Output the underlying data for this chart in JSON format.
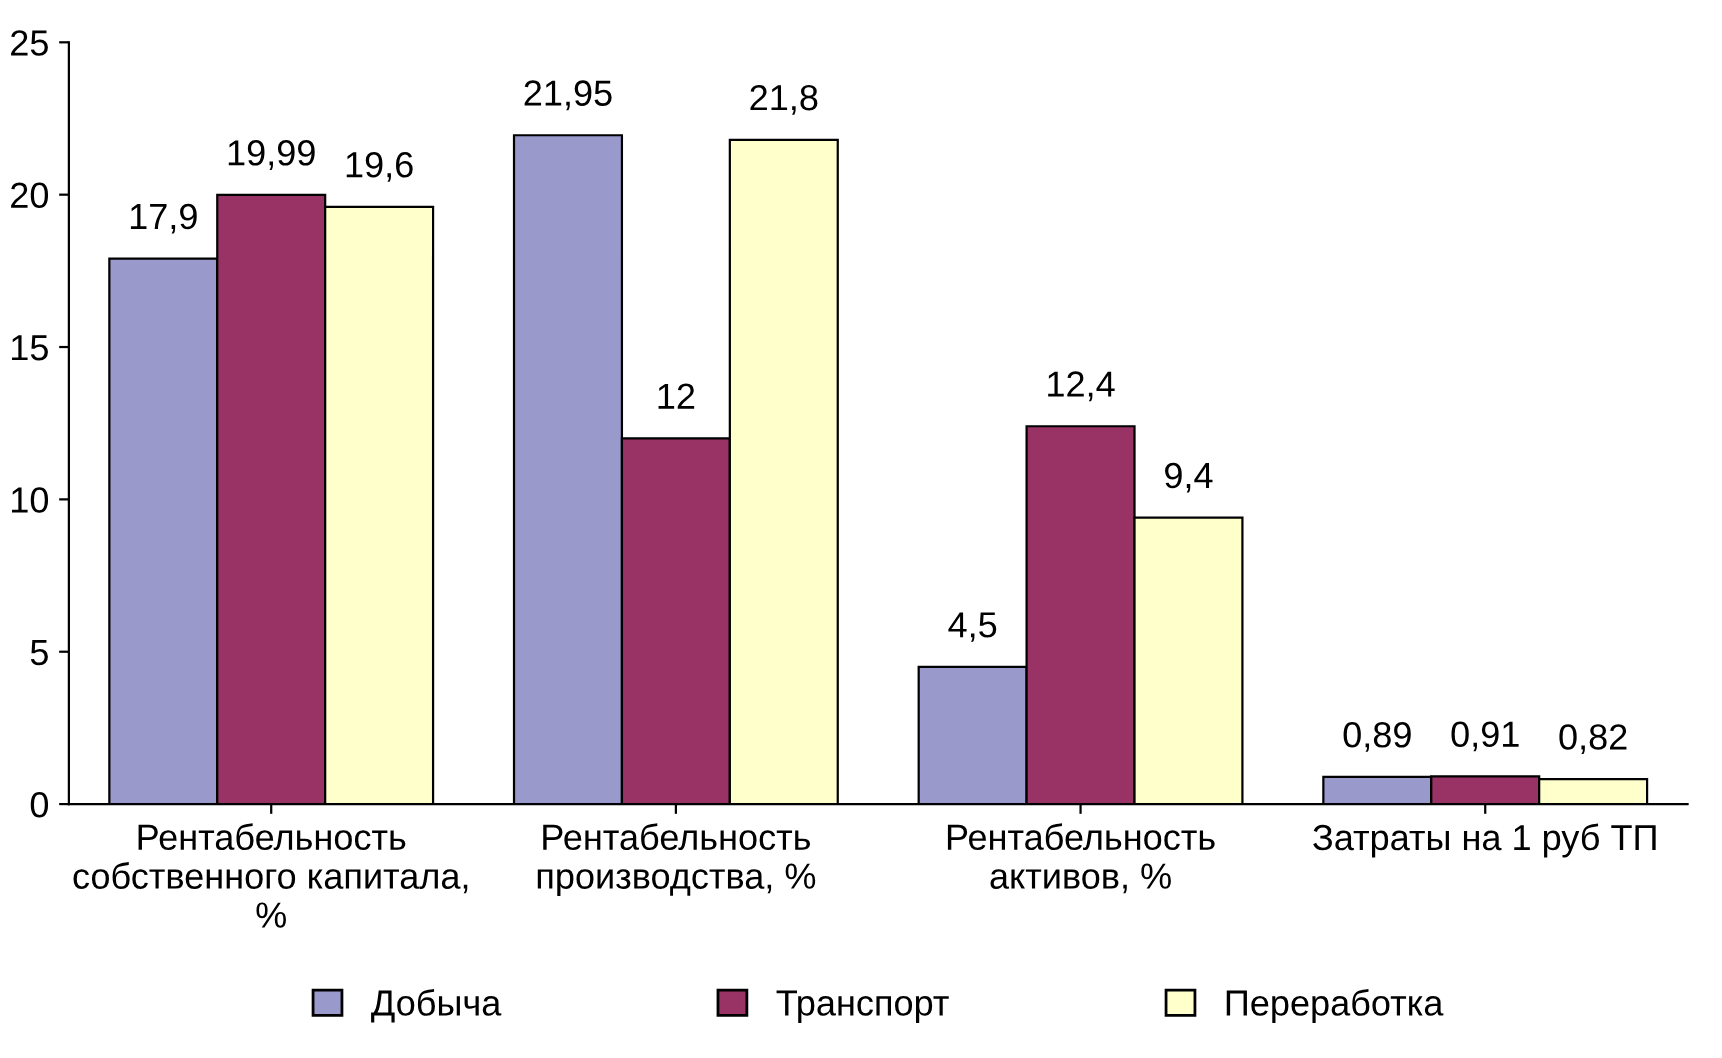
{
  "chart_data": {
    "type": "bar",
    "categories": [
      "Рентабельность собственного капитала, %",
      "Рентабельность производства, %",
      "Рентабельность активов, %",
      "Затраты на 1 руб ТП"
    ],
    "series": [
      {
        "name": "Добыча",
        "color": "#9999cc",
        "values": [
          17.9,
          21.95,
          4.5,
          0.89
        ],
        "value_labels": [
          "17,9",
          "21,95",
          "4,5",
          "0,89"
        ]
      },
      {
        "name": "Транспорт",
        "color": "#993366",
        "values": [
          19.99,
          12,
          12.4,
          0.91
        ],
        "value_labels": [
          "19,99",
          "12",
          "12,4",
          "0,91"
        ]
      },
      {
        "name": "Переработка",
        "color": "#ffffcc",
        "values": [
          19.6,
          21.8,
          9.4,
          0.82
        ],
        "value_labels": [
          "19,6",
          "21,8",
          "9,4",
          "0,82"
        ]
      }
    ],
    "ylim": [
      0,
      25
    ],
    "yticks": [
      0,
      5,
      10,
      15,
      20,
      25
    ],
    "grid": false,
    "legend": "bottom"
  }
}
